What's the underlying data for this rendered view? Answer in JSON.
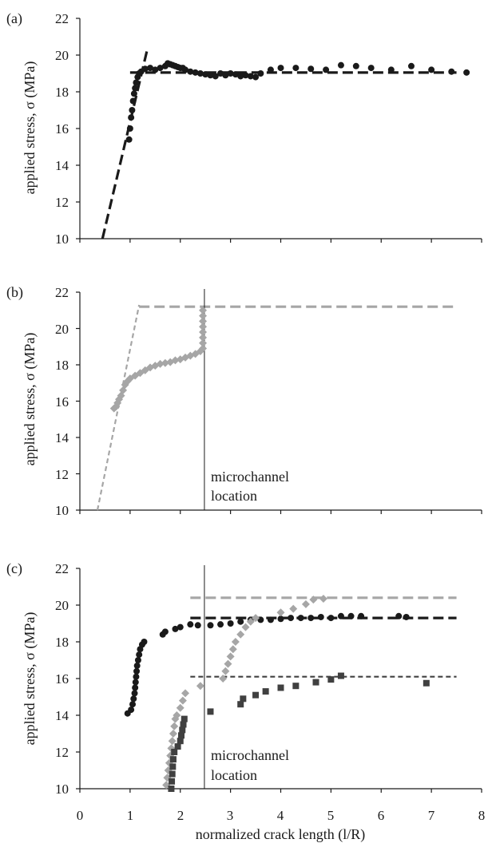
{
  "chart_data": [
    {
      "type": "scatter",
      "panel_label": "(a)",
      "ylabel": "applied stress, σ (MPa)",
      "ylim": [
        10,
        22
      ],
      "yticks": [
        "10",
        "12",
        "14",
        "16",
        "18",
        "20",
        "22"
      ],
      "xlim": [
        0,
        8
      ],
      "show_x_tick_labels": false,
      "grid": false,
      "series": [
        {
          "marker": "circle",
          "color": "#1a1a1a",
          "points": [
            [
              0.98,
              15.4
            ],
            [
              1.0,
              16.0
            ],
            [
              1.02,
              16.6
            ],
            [
              1.04,
              17.0
            ],
            [
              1.06,
              17.5
            ],
            [
              1.08,
              17.9
            ],
            [
              1.1,
              18.2
            ],
            [
              1.12,
              18.5
            ],
            [
              1.15,
              18.8
            ],
            [
              1.18,
              19.0
            ],
            [
              1.22,
              19.1
            ],
            [
              1.3,
              19.25
            ],
            [
              1.4,
              19.3
            ],
            [
              1.5,
              19.2
            ],
            [
              1.6,
              19.3
            ],
            [
              1.7,
              19.4
            ],
            [
              1.75,
              19.55
            ],
            [
              1.8,
              19.5
            ],
            [
              1.85,
              19.45
            ],
            [
              1.9,
              19.4
            ],
            [
              1.95,
              19.35
            ],
            [
              2.0,
              19.3
            ],
            [
              2.05,
              19.3
            ],
            [
              2.1,
              19.2
            ],
            [
              2.2,
              19.1
            ],
            [
              2.3,
              19.05
            ],
            [
              2.4,
              19.0
            ],
            [
              2.5,
              18.95
            ],
            [
              2.6,
              18.9
            ],
            [
              2.7,
              18.85
            ],
            [
              2.8,
              19.0
            ],
            [
              2.9,
              18.9
            ],
            [
              3.0,
              19.0
            ],
            [
              3.1,
              18.95
            ],
            [
              3.2,
              18.85
            ],
            [
              3.3,
              18.9
            ],
            [
              3.4,
              18.85
            ],
            [
              3.5,
              18.8
            ],
            [
              3.6,
              19.0
            ],
            [
              3.8,
              19.2
            ],
            [
              4.0,
              19.3
            ],
            [
              4.3,
              19.3
            ],
            [
              4.6,
              19.25
            ],
            [
              4.9,
              19.2
            ],
            [
              5.2,
              19.45
            ],
            [
              5.5,
              19.4
            ],
            [
              5.8,
              19.3
            ],
            [
              6.2,
              19.2
            ],
            [
              6.6,
              19.4
            ],
            [
              7.0,
              19.2
            ],
            [
              7.4,
              19.1
            ],
            [
              7.7,
              19.05
            ]
          ]
        }
      ],
      "lines": [
        {
          "style": "dashed-heavy",
          "color": "#1a1a1a",
          "x": [
            0.45,
            1.35
          ],
          "y": [
            10.0,
            20.4
          ]
        },
        {
          "style": "dashed-heavy",
          "color": "#1a1a1a",
          "x": [
            1.0,
            7.5
          ],
          "y": [
            19.05,
            19.05
          ]
        }
      ]
    },
    {
      "type": "scatter",
      "panel_label": "(b)",
      "ylabel": "applied stress, σ (MPa)",
      "ylim": [
        10,
        22
      ],
      "yticks": [
        "10",
        "12",
        "14",
        "16",
        "18",
        "20",
        "22"
      ],
      "xlim": [
        0,
        8
      ],
      "show_x_tick_labels": false,
      "grid": false,
      "series": [
        {
          "marker": "diamond",
          "color": "#a6a6a6",
          "points": [
            [
              0.68,
              15.6
            ],
            [
              0.72,
              15.7
            ],
            [
              0.75,
              15.9
            ],
            [
              0.78,
              16.1
            ],
            [
              0.82,
              16.3
            ],
            [
              0.86,
              16.6
            ],
            [
              0.9,
              16.9
            ],
            [
              0.95,
              17.1
            ],
            [
              1.0,
              17.25
            ],
            [
              1.1,
              17.4
            ],
            [
              1.2,
              17.55
            ],
            [
              1.3,
              17.7
            ],
            [
              1.4,
              17.85
            ],
            [
              1.5,
              17.95
            ],
            [
              1.6,
              18.05
            ],
            [
              1.7,
              18.1
            ],
            [
              1.8,
              18.15
            ],
            [
              1.9,
              18.25
            ],
            [
              2.0,
              18.3
            ],
            [
              2.1,
              18.4
            ],
            [
              2.2,
              18.5
            ],
            [
              2.3,
              18.6
            ],
            [
              2.4,
              18.75
            ],
            [
              2.45,
              18.9
            ],
            [
              2.45,
              19.2
            ],
            [
              2.45,
              19.5
            ],
            [
              2.45,
              19.8
            ],
            [
              2.45,
              20.1
            ],
            [
              2.45,
              20.4
            ],
            [
              2.45,
              20.7
            ],
            [
              2.45,
              21.0
            ]
          ]
        }
      ],
      "lines": [
        {
          "style": "dashed",
          "color": "#a6a6a6",
          "x": [
            0.35,
            1.18
          ],
          "y": [
            10.0,
            21.3
          ]
        },
        {
          "style": "dashed-heavy",
          "color": "#a6a6a6",
          "x": [
            1.18,
            7.5
          ],
          "y": [
            21.2,
            21.2
          ]
        }
      ],
      "vline": {
        "x": 2.48,
        "color": "#1a1a1a"
      },
      "annotation": {
        "lines": [
          "microchannel",
          "location"
        ]
      }
    },
    {
      "type": "scatter",
      "panel_label": "(c)",
      "ylabel": "applied stress, σ (MPa)",
      "xlabel": "normalized crack length (l/R)",
      "ylim": [
        10,
        22
      ],
      "yticks": [
        "10",
        "12",
        "14",
        "16",
        "18",
        "20",
        "22"
      ],
      "xlim": [
        0,
        8
      ],
      "xticks": [
        "0",
        "1",
        "2",
        "3",
        "4",
        "5",
        "6",
        "7",
        "8"
      ],
      "show_x_tick_labels": true,
      "grid": false,
      "series": [
        {
          "marker": "circle",
          "color": "#1a1a1a",
          "points": [
            [
              0.95,
              14.1
            ],
            [
              1.02,
              14.3
            ],
            [
              1.05,
              14.6
            ],
            [
              1.07,
              14.9
            ],
            [
              1.09,
              15.2
            ],
            [
              1.1,
              15.5
            ],
            [
              1.11,
              15.8
            ],
            [
              1.12,
              16.1
            ],
            [
              1.13,
              16.4
            ],
            [
              1.14,
              16.7
            ],
            [
              1.16,
              17.0
            ],
            [
              1.18,
              17.3
            ],
            [
              1.2,
              17.6
            ],
            [
              1.24,
              17.85
            ],
            [
              1.28,
              18.0
            ],
            [
              1.65,
              18.4
            ],
            [
              1.7,
              18.55
            ],
            [
              1.9,
              18.7
            ],
            [
              2.0,
              18.8
            ],
            [
              2.2,
              18.95
            ],
            [
              2.35,
              18.9
            ],
            [
              2.6,
              18.9
            ],
            [
              2.8,
              18.95
            ],
            [
              3.0,
              19.0
            ],
            [
              3.2,
              19.1
            ],
            [
              3.4,
              19.2
            ],
            [
              3.6,
              19.2
            ],
            [
              3.8,
              19.2
            ],
            [
              4.0,
              19.25
            ],
            [
              4.2,
              19.3
            ],
            [
              4.4,
              19.3
            ],
            [
              4.6,
              19.3
            ],
            [
              4.8,
              19.35
            ],
            [
              5.0,
              19.3
            ],
            [
              5.2,
              19.4
            ],
            [
              5.4,
              19.4
            ],
            [
              5.6,
              19.4
            ],
            [
              6.35,
              19.4
            ],
            [
              6.5,
              19.35
            ]
          ]
        },
        {
          "marker": "diamond",
          "color": "#a6a6a6",
          "points": [
            [
              1.72,
              10.2
            ],
            [
              1.74,
              10.6
            ],
            [
              1.76,
              11.0
            ],
            [
              1.78,
              11.4
            ],
            [
              1.8,
              11.8
            ],
            [
              1.82,
              12.2
            ],
            [
              1.84,
              12.6
            ],
            [
              1.86,
              13.0
            ],
            [
              1.88,
              13.4
            ],
            [
              1.9,
              13.8
            ],
            [
              1.93,
              14.0
            ],
            [
              2.0,
              14.4
            ],
            [
              2.05,
              14.8
            ],
            [
              2.1,
              15.2
            ],
            [
              2.4,
              15.6
            ],
            [
              2.85,
              16.0
            ],
            [
              2.9,
              16.4
            ],
            [
              2.95,
              16.8
            ],
            [
              3.0,
              17.2
            ],
            [
              3.05,
              17.6
            ],
            [
              3.1,
              18.0
            ],
            [
              3.2,
              18.4
            ],
            [
              3.3,
              18.8
            ],
            [
              3.4,
              19.1
            ],
            [
              3.5,
              19.3
            ],
            [
              4.0,
              19.6
            ],
            [
              4.25,
              19.8
            ],
            [
              4.5,
              20.05
            ],
            [
              4.65,
              20.3
            ],
            [
              4.85,
              20.35
            ]
          ]
        },
        {
          "marker": "square",
          "color": "#404040",
          "points": [
            [
              1.82,
              10.0
            ],
            [
              1.83,
              10.4
            ],
            [
              1.84,
              10.8
            ],
            [
              1.85,
              11.2
            ],
            [
              1.86,
              11.6
            ],
            [
              1.88,
              12.0
            ],
            [
              1.95,
              12.3
            ],
            [
              2.0,
              12.6
            ],
            [
              2.02,
              12.9
            ],
            [
              2.04,
              13.2
            ],
            [
              2.06,
              13.5
            ],
            [
              2.08,
              13.8
            ],
            [
              2.6,
              14.2
            ],
            [
              3.2,
              14.6
            ],
            [
              3.25,
              14.9
            ],
            [
              3.5,
              15.1
            ],
            [
              3.7,
              15.3
            ],
            [
              4.0,
              15.5
            ],
            [
              4.3,
              15.6
            ],
            [
              4.7,
              15.8
            ],
            [
              5.0,
              15.95
            ],
            [
              5.2,
              16.15
            ],
            [
              6.9,
              15.75
            ]
          ]
        }
      ],
      "lines": [
        {
          "style": "dashed-heavy",
          "color": "#a6a6a6",
          "x": [
            2.2,
            7.5
          ],
          "y": [
            20.4,
            20.4
          ]
        },
        {
          "style": "dashed-heavy",
          "color": "#1a1a1a",
          "x": [
            2.2,
            7.5
          ],
          "y": [
            19.3,
            19.3
          ]
        },
        {
          "style": "dashed",
          "color": "#404040",
          "x": [
            2.2,
            7.5
          ],
          "y": [
            16.1,
            16.1
          ]
        }
      ],
      "vline": {
        "x": 2.48,
        "color": "#1a1a1a"
      },
      "annotation": {
        "lines": [
          "microchannel",
          "location"
        ]
      }
    }
  ]
}
